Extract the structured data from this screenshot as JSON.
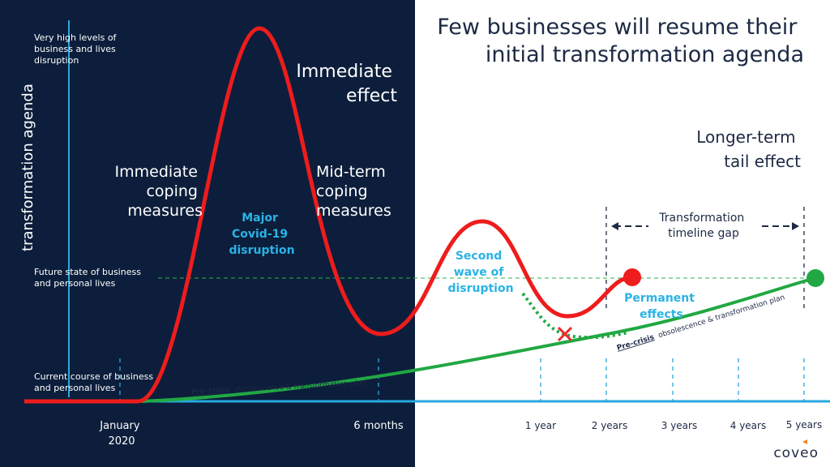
{
  "title": {
    "lines": [
      "Few businesses will resume their",
      "initial transformation agenda"
    ]
  },
  "y_axis_label": "transformation agenda",
  "levels": {
    "very_high": [
      "Very high levels of",
      "business and lives",
      "disruption"
    ],
    "future_state": [
      "Future state of business",
      "and personal lives"
    ],
    "current_course": [
      "Current course of business",
      "and personal lives"
    ]
  },
  "phases": {
    "immediate_effect": [
      "Immediate",
      "effect"
    ],
    "immediate_coping": [
      "Immediate",
      "coping",
      "measures"
    ],
    "mid_term_coping": [
      "Mid-term",
      "coping",
      "measures"
    ],
    "major_disruption": [
      "Major",
      "Covid-19",
      "disruption"
    ],
    "longer_term": [
      "Longer-term",
      "tail effect"
    ],
    "timeline_gap": [
      "Transformation",
      "timeline gap"
    ],
    "second_wave": [
      "Second",
      "wave of",
      "disruption"
    ],
    "permanent_effects": [
      "Permanent",
      "effects"
    ]
  },
  "plan_label": {
    "emphasis": "Pre-crisis",
    "rest": "obsolescence & transformation plan"
  },
  "timeline": {
    "january": [
      "January",
      "2020"
    ],
    "six_months": "6 months",
    "one_year": "1 year",
    "two_years": "2 years",
    "three_years": "3 years",
    "four_years": "4 years",
    "five_years": "5 years"
  },
  "logo": "coveo"
}
